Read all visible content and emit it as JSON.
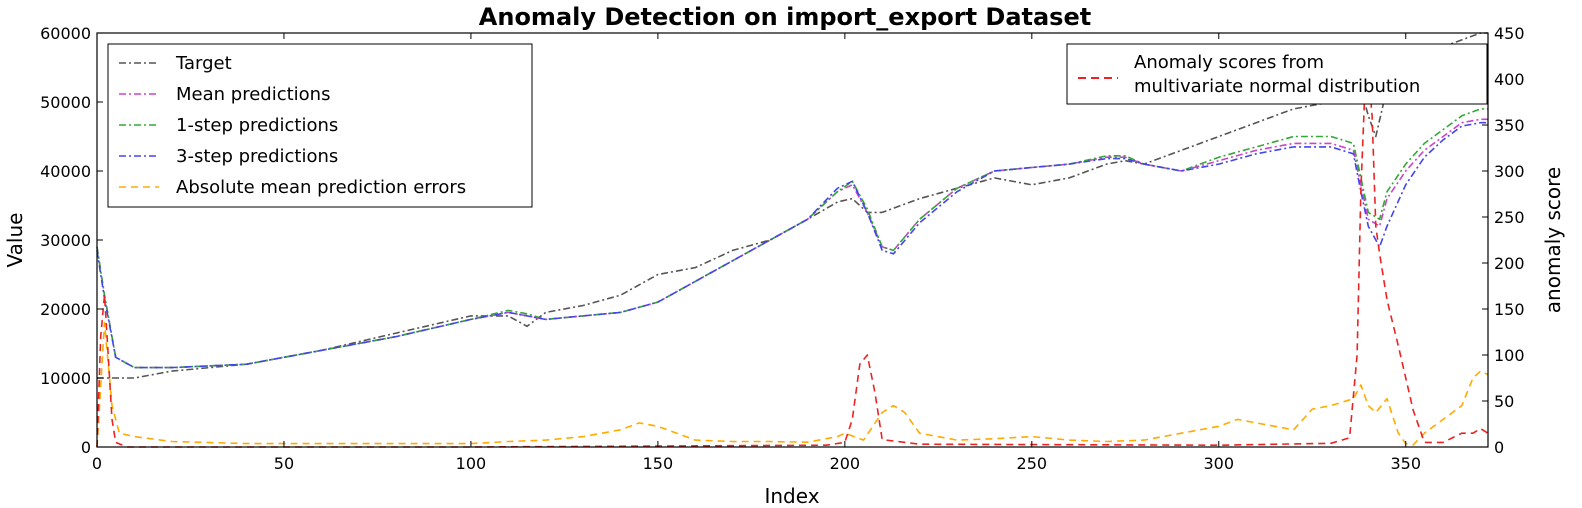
{
  "chart_data": {
    "type": "line",
    "title": "Anomaly Detection on import_export Dataset",
    "xlabel": "Index",
    "ylabel": "Value",
    "ylabel_right": "anomaly score",
    "xlim": [
      0,
      372
    ],
    "ylim": [
      0,
      60000
    ],
    "ylim_right": [
      0,
      450
    ],
    "xticks": [
      0,
      50,
      100,
      150,
      200,
      250,
      300,
      350
    ],
    "yticks": [
      0,
      10000,
      20000,
      30000,
      40000,
      50000,
      60000
    ],
    "yticks_right": [
      0,
      50,
      100,
      150,
      200,
      250,
      300,
      350,
      400,
      450
    ],
    "grid": false,
    "legend_left": {
      "placement": "top-left",
      "entries": [
        "Target",
        "Mean predictions",
        "1-step predictions",
        "3-step predictions",
        "Absolute mean prediction errors"
      ]
    },
    "legend_right": {
      "placement": "top-right",
      "entries": [
        "Anomaly scores from",
        "multivariate normal distribution"
      ]
    },
    "series": [
      {
        "name": "Target",
        "axis": "left",
        "color": "#555555",
        "dash": "dashdot",
        "x": [
          0,
          2,
          5,
          10,
          20,
          40,
          60,
          80,
          100,
          110,
          115,
          120,
          130,
          140,
          150,
          160,
          170,
          180,
          190,
          198,
          202,
          206,
          210,
          220,
          230,
          240,
          250,
          260,
          270,
          275,
          280,
          290,
          300,
          310,
          320,
          330,
          336,
          338,
          340,
          342,
          345,
          350,
          355,
          360,
          365,
          370,
          372
        ],
        "y": [
          10000,
          10000,
          10000,
          10000,
          11000,
          12000,
          14000,
          16500,
          19000,
          19000,
          17500,
          19500,
          20500,
          22000,
          25000,
          26000,
          28500,
          30000,
          33000,
          35500,
          36000,
          34000,
          34000,
          36000,
          37500,
          39000,
          38000,
          39000,
          41000,
          41500,
          41000,
          43000,
          45000,
          47000,
          49000,
          50000,
          51000,
          52000,
          48000,
          45000,
          52000,
          55000,
          57000,
          58000,
          59000,
          60000,
          60000
        ]
      },
      {
        "name": "Mean predictions",
        "axis": "left",
        "color": "#cc44cc",
        "dash": "dashdot",
        "x": [
          0,
          2,
          5,
          10,
          20,
          40,
          60,
          80,
          100,
          110,
          115,
          120,
          130,
          140,
          150,
          160,
          170,
          180,
          190,
          198,
          202,
          206,
          210,
          213,
          220,
          230,
          240,
          250,
          260,
          270,
          275,
          280,
          290,
          300,
          310,
          320,
          330,
          336,
          338,
          340,
          343,
          345,
          350,
          355,
          360,
          365,
          370,
          372
        ],
        "y": [
          29000,
          22000,
          13000,
          11500,
          11500,
          12000,
          14000,
          16000,
          18500,
          19500,
          19000,
          18500,
          19000,
          19500,
          21000,
          24000,
          27000,
          30000,
          33000,
          37000,
          38000,
          34000,
          29000,
          28500,
          33000,
          37500,
          40000,
          40500,
          41000,
          42000,
          42000,
          41000,
          40000,
          41500,
          43000,
          44000,
          44000,
          43000,
          38000,
          33000,
          32000,
          36000,
          40000,
          43000,
          45000,
          47000,
          47500,
          47500
        ]
      },
      {
        "name": "1-step predictions",
        "axis": "left",
        "color": "#33aa33",
        "dash": "dashdot",
        "x": [
          0,
          2,
          5,
          10,
          20,
          40,
          60,
          80,
          100,
          110,
          115,
          120,
          130,
          140,
          150,
          160,
          170,
          180,
          190,
          198,
          202,
          206,
          210,
          213,
          220,
          230,
          240,
          250,
          260,
          270,
          275,
          280,
          290,
          300,
          310,
          320,
          330,
          336,
          338,
          340,
          343,
          345,
          350,
          355,
          360,
          365,
          370,
          372
        ],
        "y": [
          29000,
          22000,
          13000,
          11500,
          11500,
          12000,
          14000,
          16000,
          18500,
          19800,
          19300,
          18500,
          19000,
          19500,
          21000,
          24000,
          27000,
          30000,
          33000,
          37000,
          38500,
          34500,
          29000,
          28500,
          33000,
          37500,
          40000,
          40500,
          41000,
          42200,
          42200,
          41000,
          40000,
          42000,
          43500,
          45000,
          45000,
          44000,
          39000,
          34000,
          33000,
          37000,
          41000,
          44000,
          46000,
          48000,
          49000,
          49000
        ]
      },
      {
        "name": "3-step predictions",
        "axis": "left",
        "color": "#4444ee",
        "dash": "dashdot",
        "x": [
          0,
          2,
          5,
          10,
          20,
          40,
          60,
          80,
          100,
          110,
          115,
          120,
          130,
          140,
          150,
          160,
          170,
          180,
          190,
          198,
          202,
          206,
          210,
          213,
          220,
          230,
          240,
          250,
          260,
          270,
          275,
          280,
          290,
          300,
          310,
          320,
          330,
          336,
          338,
          340,
          343,
          345,
          350,
          355,
          360,
          365,
          370,
          372
        ],
        "y": [
          28500,
          21500,
          13000,
          11500,
          11500,
          12000,
          14000,
          16000,
          18500,
          19500,
          19000,
          18500,
          19000,
          19500,
          21000,
          24000,
          27000,
          30000,
          33000,
          37500,
          38500,
          34000,
          28500,
          28000,
          32500,
          37000,
          40000,
          40500,
          41000,
          41800,
          41800,
          41000,
          40000,
          41000,
          42500,
          43500,
          43500,
          42500,
          37000,
          32000,
          29000,
          32000,
          38000,
          42000,
          44500,
          46500,
          47000,
          47000
        ]
      },
      {
        "name": "Absolute mean prediction errors",
        "axis": "left",
        "color": "#ffaa00",
        "dash": "dashed",
        "x": [
          0,
          2,
          4,
          6,
          10,
          20,
          40,
          60,
          80,
          100,
          110,
          120,
          130,
          140,
          145,
          150,
          160,
          170,
          180,
          190,
          198,
          200,
          205,
          210,
          213,
          216,
          220,
          230,
          240,
          250,
          260,
          270,
          280,
          290,
          300,
          305,
          310,
          320,
          325,
          330,
          336,
          338,
          340,
          342,
          345,
          348,
          350,
          352,
          355,
          360,
          365,
          368,
          370,
          372
        ],
        "y": [
          0,
          18000,
          6000,
          2000,
          1500,
          800,
          500,
          500,
          500,
          500,
          800,
          1000,
          1500,
          2500,
          3500,
          3000,
          1000,
          800,
          800,
          700,
          1500,
          2000,
          1000,
          5000,
          6000,
          5000,
          2000,
          1000,
          1200,
          1500,
          1000,
          800,
          1000,
          2000,
          3000,
          4000,
          3500,
          2500,
          5500,
          6000,
          7000,
          9000,
          6000,
          5000,
          7000,
          2000,
          500,
          300,
          2000,
          4000,
          6000,
          10000,
          11000,
          10500
        ]
      },
      {
        "name": "Anomaly scores from multivariate normal distribution",
        "axis": "right",
        "color": "#ee2222",
        "dash": "dashed",
        "x": [
          0,
          1,
          2,
          3,
          4,
          5,
          8,
          20,
          100,
          195,
          200,
          202,
          204,
          206,
          208,
          210,
          220,
          300,
          330,
          335,
          337,
          338,
          339,
          340,
          341,
          342,
          343,
          345,
          348,
          352,
          355,
          360,
          365,
          368,
          370,
          372
        ],
        "y": [
          0,
          120,
          165,
          100,
          30,
          5,
          0,
          0,
          0,
          2,
          5,
          30,
          90,
          100,
          60,
          8,
          3,
          2,
          4,
          10,
          100,
          280,
          380,
          410,
          360,
          240,
          210,
          160,
          110,
          40,
          5,
          5,
          15,
          15,
          20,
          15
        ]
      }
    ]
  }
}
